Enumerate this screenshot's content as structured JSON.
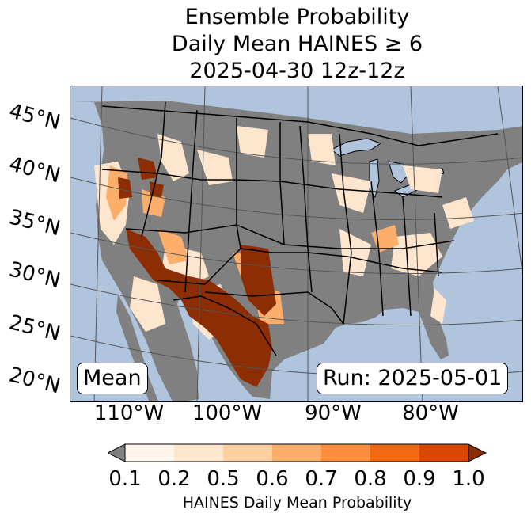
{
  "title": {
    "line1": "Ensemble Probability",
    "line2": "Daily Mean HAINES ≥ 6",
    "line3": "2025-04-30 12z-12z"
  },
  "map": {
    "latitude_labels": [
      "45°N",
      "40°N",
      "35°N",
      "30°N",
      "25°N",
      "20°N"
    ],
    "longitude_labels": [
      "110°W",
      "100°W",
      "90°W",
      "80°W"
    ],
    "stat_label": "Mean",
    "run_label": "Run: 2025-05-01",
    "colors": {
      "ocean": "#b0c4de",
      "land_below_threshold": "#808080",
      "borders": "#000000",
      "graticule": "#555555"
    }
  },
  "colorbar": {
    "label": "HAINES Daily Mean Probability",
    "ticks": [
      "0.1",
      "0.2",
      "0.5",
      "0.6",
      "0.7",
      "0.8",
      "0.9",
      "1.0"
    ],
    "under_color": "#808080",
    "bin_colors": [
      "#fff5eb",
      "#fee6ce",
      "#fdd0a2",
      "#fdae6b",
      "#fd8d3c",
      "#f16913",
      "#d94801"
    ],
    "over_color": "#8c2d04"
  }
}
